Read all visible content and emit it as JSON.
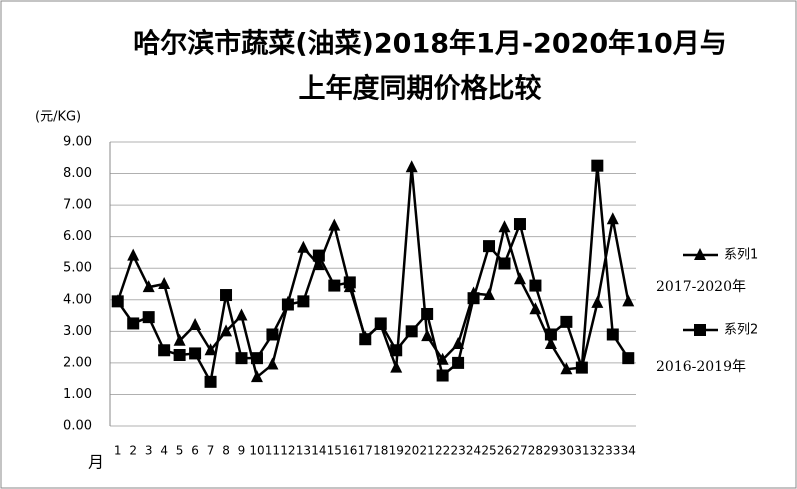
{
  "chart_data": {
    "type": "line",
    "title": "哈尔滨市蔬菜(油菜)2018年1月-2020年10月与",
    "subtitle": "上年度同期价格比较",
    "y_label": "(元/KG)",
    "x_label": "月",
    "categories": [
      "1",
      "2",
      "3",
      "4",
      "5",
      "6",
      "7",
      "8",
      "9",
      "10",
      "11",
      "12",
      "13",
      "14",
      "15",
      "16",
      "17",
      "18",
      "19",
      "20",
      "21",
      "22",
      "23",
      "24",
      "25",
      "26",
      "27",
      "28",
      "29",
      "30",
      "31",
      "32",
      "33",
      "34"
    ],
    "series": [
      {
        "name": "系列1",
        "color": "#000000",
        "marker": "triangle",
        "values": [
          3.95,
          5.4,
          4.4,
          4.5,
          2.7,
          3.2,
          2.4,
          3.0,
          3.5,
          1.55,
          1.95,
          3.9,
          5.65,
          5.1,
          6.35,
          4.4,
          2.8,
          3.2,
          1.85,
          8.2,
          2.85,
          2.1,
          2.6,
          4.2,
          4.15,
          6.3,
          4.65,
          3.7,
          2.6,
          1.8,
          1.85,
          3.9,
          6.55,
          3.95
        ]
      },
      {
        "name": "系列2",
        "color": "#000000",
        "marker": "square",
        "values": [
          3.95,
          3.25,
          3.45,
          2.4,
          2.25,
          2.3,
          1.4,
          4.15,
          2.15,
          2.15,
          2.9,
          3.85,
          3.95,
          5.4,
          4.45,
          4.55,
          2.75,
          3.25,
          2.4,
          3.0,
          3.55,
          1.6,
          2.0,
          4.05,
          5.7,
          5.15,
          6.4,
          4.45,
          2.9,
          3.3,
          1.85,
          8.25,
          2.9,
          2.15
        ]
      }
    ],
    "annotations": [
      "2017-2020年",
      "2016-2019年"
    ],
    "ylim": [
      0,
      9
    ],
    "yticks": [
      {
        "value": 0,
        "label": "0.00"
      },
      {
        "value": 1,
        "label": "1.00"
      },
      {
        "value": 2,
        "label": "2.00"
      },
      {
        "value": 3,
        "label": "3.00"
      },
      {
        "value": 4,
        "label": "4.00"
      },
      {
        "value": 5,
        "label": "5.00"
      },
      {
        "value": 6,
        "label": "6.00"
      },
      {
        "value": 7,
        "label": "7.00"
      },
      {
        "value": 8,
        "label": "8.00"
      },
      {
        "value": 9,
        "label": "9.00"
      }
    ],
    "grid": true
  }
}
